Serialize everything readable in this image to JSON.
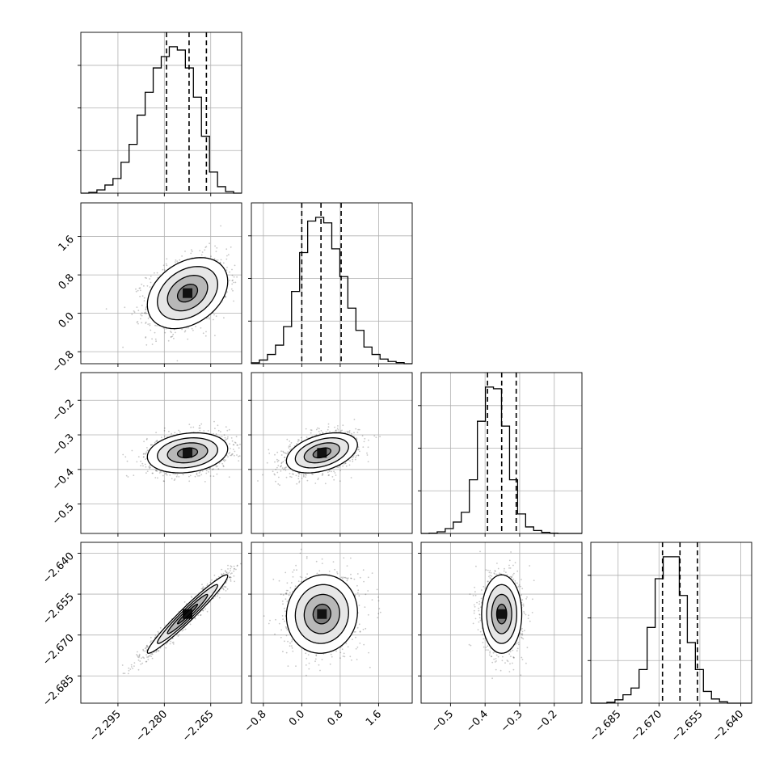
{
  "chart_data": {
    "type": "corner",
    "parameters": [
      {
        "range": [
          -2.307,
          -2.255
        ],
        "ticks": [
          -2.295,
          -2.28,
          -2.265
        ],
        "tick_labels": [
          "−2.295",
          "−2.280",
          "−2.265"
        ],
        "quantiles": [
          -2.2793,
          -2.272,
          -2.2664
        ],
        "hist": [
          0,
          0.005,
          0.02,
          0.05,
          0.09,
          0.19,
          0.3,
          0.48,
          0.62,
          0.77,
          0.84,
          0.9,
          0.88,
          0.77,
          0.59,
          0.35,
          0.13,
          0.04,
          0.01,
          0
        ]
      },
      {
        "range": [
          -1.05,
          2.3
        ],
        "ticks": [
          -0.8,
          0.0,
          0.8,
          1.6
        ],
        "tick_labels": [
          "−0.8",
          "0.0",
          "0.8",
          "1.6"
        ],
        "quantiles": [
          0.0,
          0.4,
          0.82
        ],
        "hist": [
          0.005,
          0.02,
          0.05,
          0.1,
          0.2,
          0.39,
          0.6,
          0.77,
          0.79,
          0.76,
          0.62,
          0.47,
          0.3,
          0.18,
          0.09,
          0.05,
          0.025,
          0.012,
          0.006,
          0
        ]
      },
      {
        "range": [
          -0.585,
          -0.12
        ],
        "ticks": [
          -0.5,
          -0.4,
          -0.3,
          -0.2
        ],
        "tick_labels": [
          "−0.5",
          "−0.4",
          "−0.3",
          "−0.2"
        ],
        "quantiles": [
          -0.393,
          -0.352,
          -0.31
        ],
        "hist": [
          0,
          0.002,
          0.01,
          0.03,
          0.07,
          0.13,
          0.33,
          0.69,
          0.9,
          0.89,
          0.66,
          0.33,
          0.12,
          0.04,
          0.018,
          0.007,
          0.002,
          0,
          0,
          0
        ]
      },
      {
        "range": [
          -2.695,
          -2.636
        ],
        "ticks": [
          -2.685,
          -2.67,
          -2.655,
          -2.64
        ],
        "tick_labels": [
          "−2.685",
          "−2.670",
          "−2.655",
          "−2.640"
        ],
        "quantiles": [
          -2.6687,
          -2.6623,
          -2.6559
        ],
        "hist": [
          0,
          0,
          0.005,
          0.02,
          0.05,
          0.09,
          0.2,
          0.45,
          0.74,
          0.87,
          0.87,
          0.64,
          0.36,
          0.2,
          0.07,
          0.025,
          0.008,
          0,
          0,
          0
        ]
      }
    ],
    "pairs": [
      {
        "x": 0,
        "y": 1,
        "center": [
          -2.2725,
          0.42
        ],
        "spread": [
          0.0065,
          0.37
        ],
        "rho": 0.33
      },
      {
        "x": 0,
        "y": 2,
        "center": [
          -2.2725,
          -0.352
        ],
        "spread": [
          0.0065,
          0.029
        ],
        "rho": 0.2
      },
      {
        "x": 1,
        "y": 2,
        "center": [
          0.42,
          -0.352
        ],
        "spread": [
          0.37,
          0.029
        ],
        "rho": 0.4
      },
      {
        "x": 0,
        "y": 3,
        "center": [
          -2.2725,
          -2.6623
        ],
        "spread": [
          0.0065,
          0.0072
        ],
        "rho": 0.97
      },
      {
        "x": 1,
        "y": 3,
        "center": [
          0.42,
          -2.6623
        ],
        "spread": [
          0.37,
          0.0072
        ],
        "rho": 0.05
      },
      {
        "x": 2,
        "y": 3,
        "center": [
          -0.352,
          -2.6623
        ],
        "spread": [
          0.029,
          0.0072
        ],
        "rho": 0.0
      }
    ],
    "contour_levels_sigma": [
      0.5,
      1.0,
      1.5,
      2.0
    ],
    "grid": true,
    "legend": "none",
    "title": "",
    "xlabel": "",
    "ylabel": ""
  }
}
